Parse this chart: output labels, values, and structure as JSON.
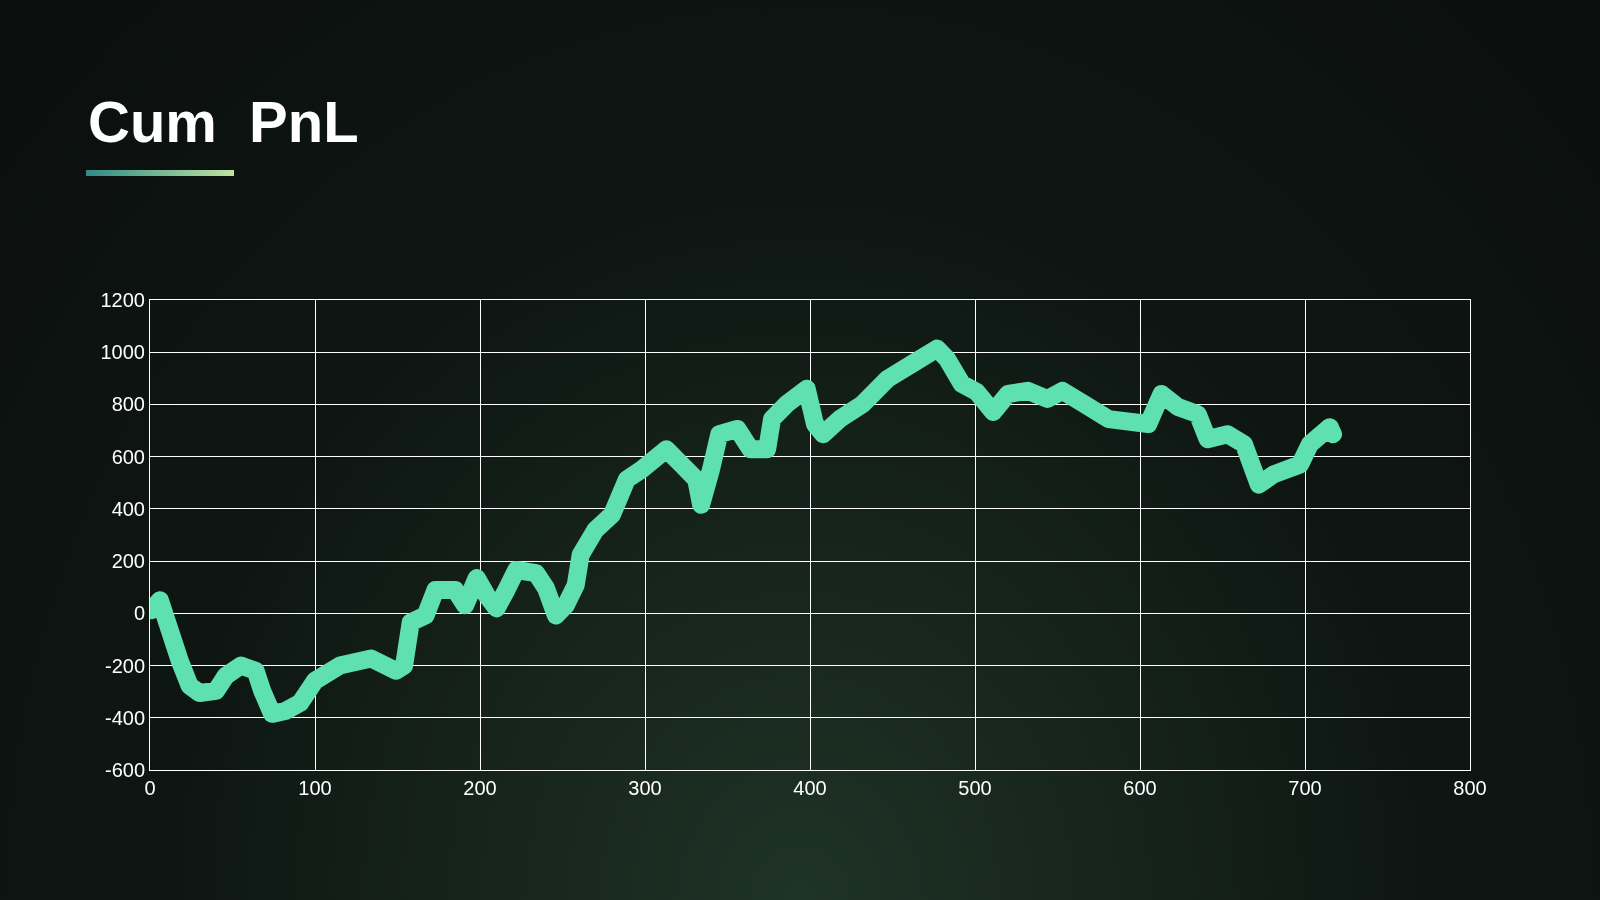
{
  "chart_data": {
    "type": "line",
    "title": "Cum  PnL",
    "x": [
      1,
      6,
      12,
      18,
      24,
      30,
      40,
      46,
      55,
      64,
      68,
      74,
      82,
      91,
      100,
      115,
      134,
      149,
      154,
      158,
      167,
      173,
      185,
      191,
      198,
      204,
      210,
      216,
      222,
      234,
      240,
      246,
      252,
      258,
      261,
      270,
      280,
      289,
      298,
      313,
      322,
      331,
      334,
      340,
      345,
      356,
      364,
      374,
      377,
      386,
      398,
      403,
      408,
      418,
      432,
      447,
      462,
      477,
      483,
      492,
      501,
      511,
      520,
      532,
      544,
      553,
      566,
      581,
      605,
      613,
      623,
      635,
      641,
      653,
      663,
      672,
      681,
      697,
      703,
      715,
      717
    ],
    "series": [
      {
        "color": "#5fe0b0",
        "values": [
          12,
          50,
          -65,
          -181,
          -277,
          -305,
          -297,
          -239,
          -200,
          -220,
          -297,
          -385,
          -374,
          -343,
          -258,
          -200,
          -173,
          -220,
          -200,
          -35,
          -8,
          89,
          89,
          31,
          135,
          69,
          19,
          89,
          166,
          154,
          96,
          -8,
          31,
          108,
          224,
          320,
          378,
          513,
          551,
          628,
          571,
          513,
          416,
          551,
          686,
          706,
          628,
          628,
          744,
          802,
          860,
          725,
          686,
          744,
          802,
          898,
          956,
          1014,
          975,
          879,
          848,
          771,
          840,
          852,
          821,
          852,
          802,
          744,
          725,
          840,
          790,
          763,
          667,
          686,
          648,
          493,
          532,
          570,
          648,
          713,
          686
        ]
      }
    ],
    "xlim": [
      0,
      800
    ],
    "xticks": [
      0,
      100,
      200,
      300,
      400,
      500,
      600,
      700,
      800
    ],
    "ylim": [
      -600,
      1200
    ],
    "yticks": [
      -600,
      -400,
      -200,
      0,
      200,
      400,
      600,
      800,
      1000,
      1200
    ],
    "grid": true,
    "legend": false,
    "line_style": "solid"
  }
}
